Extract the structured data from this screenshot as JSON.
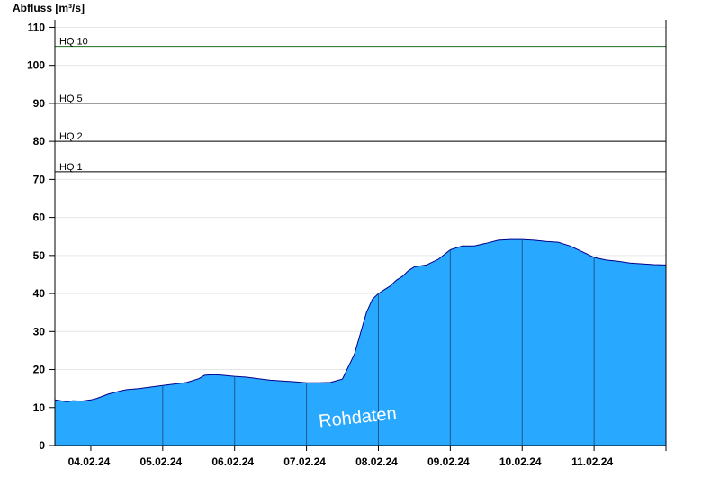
{
  "chart_data": {
    "type": "area",
    "ylabel": "Abfluss [m³/s]",
    "ylim": [
      0,
      112
    ],
    "yticks": [
      0,
      10,
      20,
      30,
      40,
      50,
      60,
      70,
      80,
      90,
      100,
      110
    ],
    "xlim": [
      "03.02.24 12:00",
      "11.02.24 24:00"
    ],
    "day_labels": [
      "04.02.24",
      "05.02.24",
      "06.02.24",
      "07.02.24",
      "08.02.24",
      "09.02.24",
      "10.02.24",
      "11.02.24"
    ],
    "fill_color": "#29a8ff",
    "line_color": "#00008b",
    "thresholds": [
      {
        "label": "HQ 1",
        "value": 72,
        "color": "#000000"
      },
      {
        "label": "HQ 2",
        "value": 80,
        "color": "#000000"
      },
      {
        "label": "HQ 5",
        "value": 90,
        "color": "#000000"
      },
      {
        "label": "HQ 10",
        "value": 105,
        "color": "#1a6b1a"
      }
    ],
    "watermark": "Rohdaten",
    "series": [
      {
        "x_hours": [
          0,
          2,
          4,
          6,
          9,
          12,
          14,
          16,
          18,
          20,
          22,
          24,
          28,
          32,
          36,
          40,
          44,
          48,
          50,
          52,
          54,
          56,
          60,
          64,
          68,
          72,
          76,
          80,
          84,
          88,
          92,
          96,
          100,
          104,
          106,
          108,
          110,
          112,
          114,
          116,
          118,
          120,
          124,
          128,
          132,
          136,
          140,
          144,
          148,
          152,
          156,
          160,
          164,
          168,
          172,
          176,
          180,
          184,
          188,
          192,
          196,
          200,
          204
        ],
        "values": [
          12.0,
          11.8,
          11.5,
          11.8,
          11.7,
          12.0,
          12.4,
          13.0,
          13.6,
          14.0,
          14.4,
          14.7,
          15.0,
          15.4,
          15.8,
          16.2,
          16.6,
          17.6,
          18.5,
          18.6,
          18.6,
          18.5,
          18.2,
          18.0,
          17.6,
          17.2,
          17.0,
          16.8,
          16.5,
          16.5,
          16.6,
          17.5,
          24.0,
          35.0,
          38.5,
          40.0,
          41.0,
          42.0,
          43.5,
          44.5,
          46.0,
          47.0,
          47.5,
          49.0,
          51.5,
          52.5,
          52.5,
          53.2,
          54.0,
          54.2,
          54.2,
          54.0,
          53.7,
          53.5,
          52.5,
          51.0,
          49.5,
          48.8,
          48.5,
          48.0,
          47.8,
          47.6,
          47.5
        ]
      }
    ]
  }
}
